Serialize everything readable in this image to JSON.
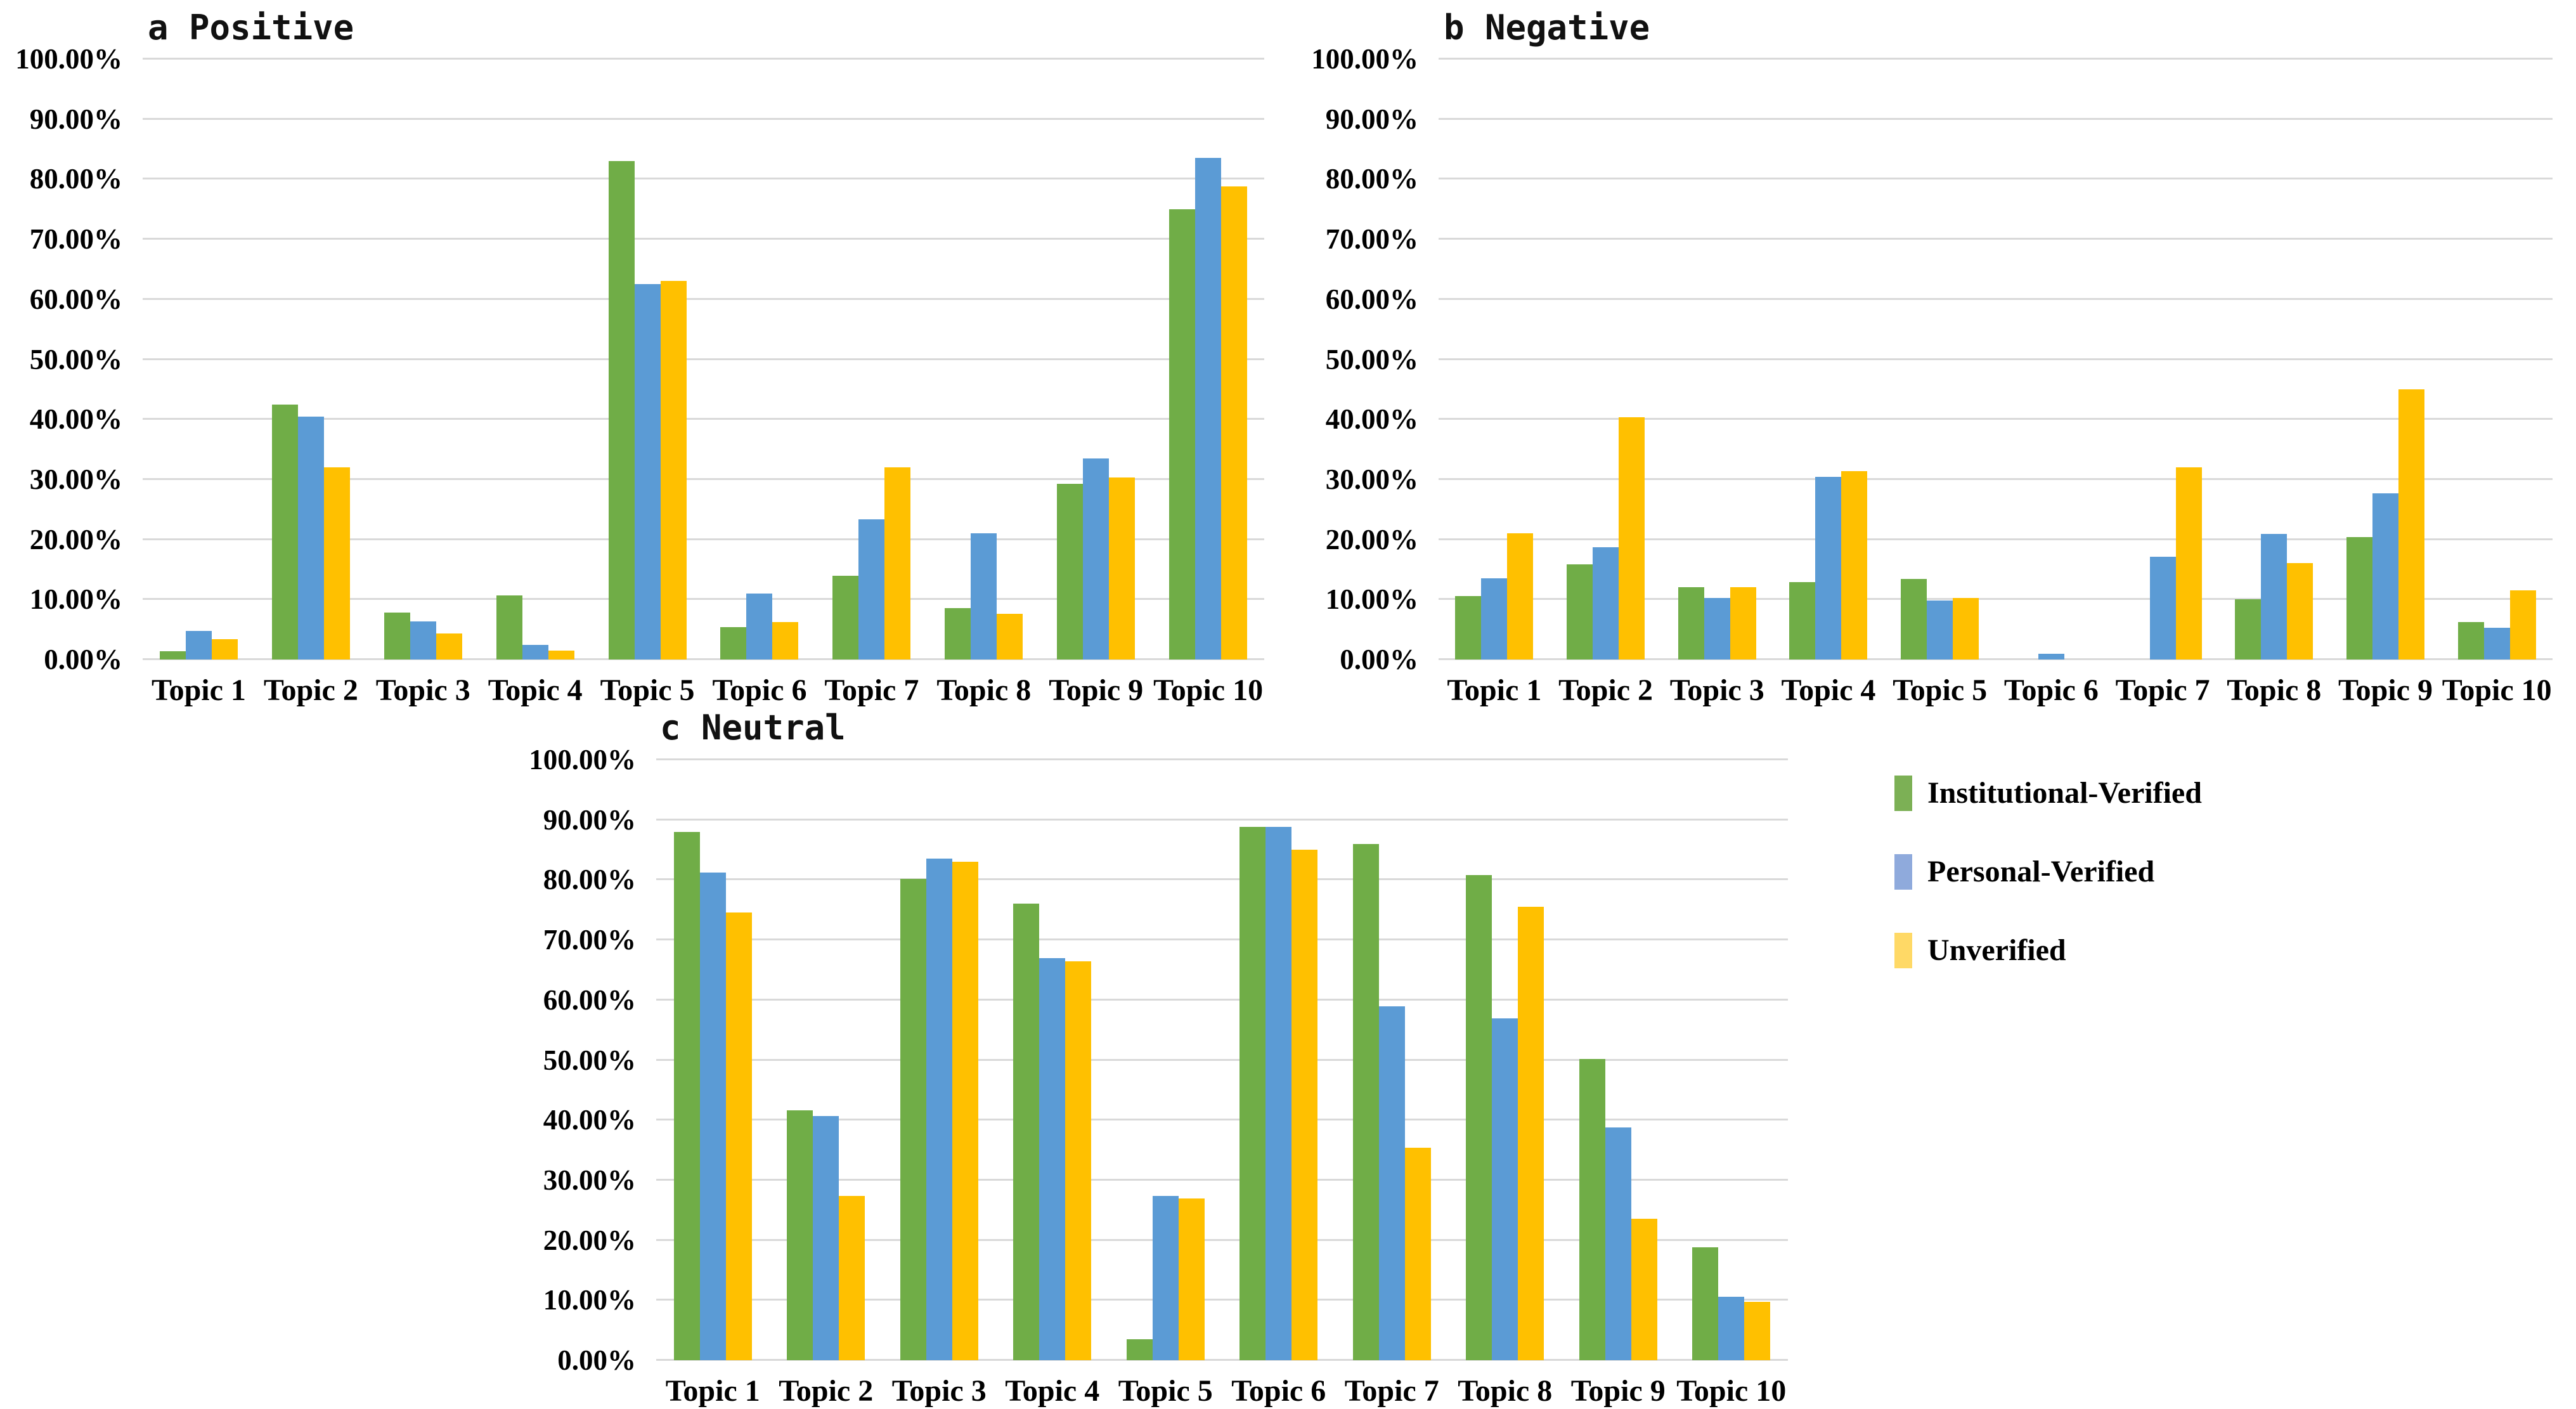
{
  "figure": {
    "background": "#ffffff",
    "panels": [
      "a Positive",
      "b Negative",
      "c Neutral"
    ]
  },
  "colors": {
    "institutional": "#70ad47",
    "personal": "#5b9bd5",
    "unverified": "#ffc000",
    "legend_institutional": "#7cb055",
    "legend_personal": "#8faadc",
    "legend_unverified": "#ffd966",
    "gridline": "#d9d9d9",
    "text": "#000000"
  },
  "legend": {
    "position": "right-middle",
    "items": [
      {
        "label": "Institutional-Verified",
        "color_key": "legend_institutional"
      },
      {
        "label": "Personal-Verified",
        "color_key": "legend_personal"
      },
      {
        "label": "Unverified",
        "color_key": "legend_unverified"
      }
    ]
  },
  "chart_data": [
    {
      "type": "bar",
      "panel": "a",
      "title": "a Positive",
      "xlabel": "",
      "ylabel": "",
      "ylim": [
        0,
        100
      ],
      "grid": true,
      "yticks": [
        "0.00%",
        "10.00%",
        "20.00%",
        "30.00%",
        "40.00%",
        "50.00%",
        "60.00%",
        "70.00%",
        "80.00%",
        "90.00%",
        "100.00%"
      ],
      "categories": [
        "Topic 1",
        "Topic 2",
        "Topic 3",
        "Topic 4",
        "Topic 5",
        "Topic 6",
        "Topic 7",
        "Topic 8",
        "Topic 9",
        "Topic 10"
      ],
      "series": [
        {
          "name": "Institutional-Verified",
          "color_key": "institutional",
          "values": [
            1.4,
            42.5,
            7.8,
            10.7,
            83.0,
            5.4,
            13.9,
            8.6,
            29.2,
            75.0
          ]
        },
        {
          "name": "Personal-Verified",
          "color_key": "personal",
          "values": [
            4.8,
            40.4,
            6.3,
            2.4,
            62.5,
            11.0,
            23.3,
            21.0,
            33.5,
            83.5
          ]
        },
        {
          "name": "Unverified",
          "color_key": "unverified",
          "values": [
            3.4,
            32.0,
            4.3,
            1.5,
            63.0,
            6.2,
            32.0,
            7.6,
            30.3,
            78.8
          ]
        }
      ]
    },
    {
      "type": "bar",
      "panel": "b",
      "title": "b Negative",
      "xlabel": "",
      "ylabel": "",
      "ylim": [
        0,
        100
      ],
      "grid": true,
      "yticks": [
        "0.00%",
        "10.00%",
        "20.00%",
        "30.00%",
        "40.00%",
        "50.00%",
        "60.00%",
        "70.00%",
        "80.00%",
        "90.00%",
        "100.00%"
      ],
      "categories": [
        "Topic 1",
        "Topic 2",
        "Topic 3",
        "Topic 4",
        "Topic 5",
        "Topic 6",
        "Topic 7",
        "Topic 8",
        "Topic 9",
        "Topic 10"
      ],
      "series": [
        {
          "name": "Institutional-Verified",
          "color_key": "institutional",
          "values": [
            10.6,
            15.8,
            12.0,
            12.9,
            13.4,
            0.0,
            0.0,
            10.0,
            20.4,
            6.2
          ]
        },
        {
          "name": "Personal-Verified",
          "color_key": "personal",
          "values": [
            13.5,
            18.7,
            10.2,
            30.4,
            9.8,
            1.0,
            17.1,
            20.9,
            27.7,
            5.3
          ]
        },
        {
          "name": "Unverified",
          "color_key": "unverified",
          "values": [
            21.0,
            40.3,
            12.0,
            31.4,
            10.2,
            0.0,
            32.0,
            16.1,
            45.0,
            11.5
          ]
        }
      ]
    },
    {
      "type": "bar",
      "panel": "c",
      "title": "c Neutral",
      "xlabel": "",
      "ylabel": "",
      "ylim": [
        0,
        100
      ],
      "grid": true,
      "yticks": [
        "0.00%",
        "10.00%",
        "20.00%",
        "30.00%",
        "40.00%",
        "50.00%",
        "60.00%",
        "70.00%",
        "80.00%",
        "90.00%",
        "100.00%"
      ],
      "categories": [
        "Topic 1",
        "Topic 2",
        "Topic 3",
        "Topic 4",
        "Topic 5",
        "Topic 6",
        "Topic 7",
        "Topic 8",
        "Topic 9",
        "Topic 10"
      ],
      "series": [
        {
          "name": "Institutional-Verified",
          "color_key": "institutional",
          "values": [
            88.0,
            41.6,
            80.2,
            76.0,
            3.5,
            88.8,
            86.0,
            80.8,
            50.2,
            18.8
          ]
        },
        {
          "name": "Personal-Verified",
          "color_key": "personal",
          "values": [
            81.2,
            40.7,
            83.5,
            66.9,
            27.3,
            88.8,
            58.9,
            56.9,
            38.8,
            10.6
          ]
        },
        {
          "name": "Unverified",
          "color_key": "unverified",
          "values": [
            74.6,
            27.3,
            83.0,
            66.4,
            26.9,
            85.0,
            35.4,
            75.5,
            23.5,
            9.7
          ]
        }
      ]
    }
  ]
}
